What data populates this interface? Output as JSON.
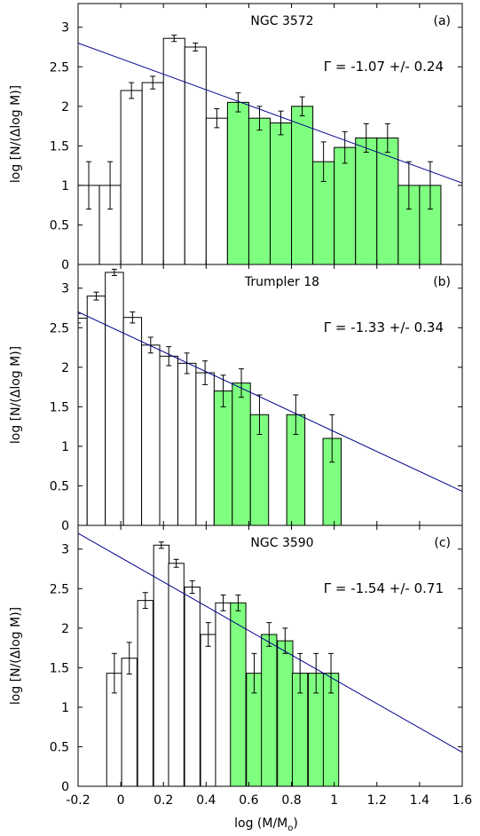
{
  "figure": {
    "xlabel": "log (M/M",
    "xlabel_sub": "o",
    "xlabel_close": ")",
    "ylabel": "log [N/(Δlog M)]"
  },
  "chart_data": [
    {
      "type": "bar",
      "title": "NGC 3572",
      "tag": "(a)",
      "annotation": "Γ = -1.07 +/- 0.24",
      "xlim": [
        -0.2,
        1.6
      ],
      "ylim": [
        0,
        3.3
      ],
      "xticks": [
        "-0.2",
        "0",
        "0.2",
        "0.4",
        "0.6",
        "0.8",
        "1",
        "1.2",
        "1.4",
        "1.6"
      ],
      "yticks": [
        "0",
        "0.5",
        "1",
        "1.5",
        "2",
        "2.5",
        "3"
      ],
      "bin_width": 0.1,
      "fit_line": {
        "x": [
          -0.2,
          1.6
        ],
        "y": [
          2.8,
          1.03
        ]
      },
      "bins": [
        {
          "x": -0.15,
          "y": 1.0,
          "err": 0.3,
          "fit": false
        },
        {
          "x": -0.05,
          "y": 1.0,
          "err": 0.3,
          "fit": false
        },
        {
          "x": 0.05,
          "y": 2.2,
          "err": 0.1,
          "fit": false
        },
        {
          "x": 0.15,
          "y": 2.3,
          "err": 0.08,
          "fit": false
        },
        {
          "x": 0.25,
          "y": 2.86,
          "err": 0.04,
          "fit": false
        },
        {
          "x": 0.35,
          "y": 2.75,
          "err": 0.05,
          "fit": false
        },
        {
          "x": 0.45,
          "y": 1.85,
          "err": 0.12,
          "fit": false
        },
        {
          "x": 0.55,
          "y": 2.05,
          "err": 0.12,
          "fit": true
        },
        {
          "x": 0.65,
          "y": 1.85,
          "err": 0.15,
          "fit": true
        },
        {
          "x": 0.75,
          "y": 1.79,
          "err": 0.15,
          "fit": true
        },
        {
          "x": 0.85,
          "y": 2.0,
          "err": 0.12,
          "fit": true
        },
        {
          "x": 0.95,
          "y": 1.3,
          "err": 0.25,
          "fit": true
        },
        {
          "x": 1.05,
          "y": 1.48,
          "err": 0.2,
          "fit": true
        },
        {
          "x": 1.15,
          "y": 1.6,
          "err": 0.18,
          "fit": true
        },
        {
          "x": 1.25,
          "y": 1.6,
          "err": 0.18,
          "fit": true
        },
        {
          "x": 1.35,
          "y": 1.0,
          "err": 0.3,
          "fit": true
        },
        {
          "x": 1.45,
          "y": 1.0,
          "err": 0.3,
          "fit": true
        }
      ]
    },
    {
      "type": "bar",
      "title": "Trumpler 18",
      "tag": "(b)",
      "annotation": "Γ = -1.33 +/- 0.34",
      "xlim": [
        -0.2,
        1.6
      ],
      "ylim": [
        0,
        3.3
      ],
      "xticks": [
        "-0.2",
        "0",
        "0.2",
        "0.4",
        "0.6",
        "0.8",
        "1",
        "1.2",
        "1.4",
        "1.6"
      ],
      "yticks": [
        "0",
        "0.5",
        "1",
        "1.5",
        "2",
        "2.5",
        "3"
      ],
      "bin_width": 0.085,
      "fit_line": {
        "x": [
          -0.2,
          1.6
        ],
        "y": [
          2.7,
          0.43
        ]
      },
      "bins": [
        {
          "x": -0.2,
          "y": 2.62,
          "err": 0.06,
          "fit": false
        },
        {
          "x": -0.115,
          "y": 2.9,
          "err": 0.05,
          "fit": false
        },
        {
          "x": -0.03,
          "y": 3.2,
          "err": 0.04,
          "fit": false
        },
        {
          "x": 0.055,
          "y": 2.63,
          "err": 0.07,
          "fit": false
        },
        {
          "x": 0.14,
          "y": 2.28,
          "err": 0.1,
          "fit": false
        },
        {
          "x": 0.225,
          "y": 2.14,
          "err": 0.12,
          "fit": false
        },
        {
          "x": 0.31,
          "y": 2.05,
          "err": 0.13,
          "fit": false
        },
        {
          "x": 0.395,
          "y": 1.93,
          "err": 0.15,
          "fit": false
        },
        {
          "x": 0.48,
          "y": 1.7,
          "err": 0.2,
          "fit": true
        },
        {
          "x": 0.565,
          "y": 1.8,
          "err": 0.18,
          "fit": true
        },
        {
          "x": 0.65,
          "y": 1.4,
          "err": 0.25,
          "fit": true
        },
        {
          "x": 0.82,
          "y": 1.4,
          "err": 0.25,
          "fit": true
        },
        {
          "x": 0.99,
          "y": 1.1,
          "err": 0.3,
          "fit": true
        }
      ]
    },
    {
      "type": "bar",
      "title": "NGC 3590",
      "tag": "(c)",
      "annotation": "Γ = -1.54 +/- 0.71",
      "xlim": [
        -0.2,
        1.6
      ],
      "ylim": [
        0,
        3.3
      ],
      "xticks": [
        "-0.2",
        "0",
        "0.2",
        "0.4",
        "0.6",
        "0.8",
        "1",
        "1.2",
        "1.4",
        "1.6"
      ],
      "yticks": [
        "0",
        "0.5",
        "1",
        "1.5",
        "2",
        "2.5",
        "3"
      ],
      "bin_width": 0.072,
      "fit_line": {
        "x": [
          -0.2,
          1.6
        ],
        "y": [
          3.2,
          0.43
        ]
      },
      "bins": [
        {
          "x": -0.03,
          "y": 1.43,
          "err": 0.25,
          "fit": false
        },
        {
          "x": 0.04,
          "y": 1.62,
          "err": 0.2,
          "fit": false
        },
        {
          "x": 0.115,
          "y": 2.35,
          "err": 0.1,
          "fit": false
        },
        {
          "x": 0.19,
          "y": 3.05,
          "err": 0.04,
          "fit": false
        },
        {
          "x": 0.26,
          "y": 2.82,
          "err": 0.05,
          "fit": false
        },
        {
          "x": 0.335,
          "y": 2.52,
          "err": 0.08,
          "fit": false
        },
        {
          "x": 0.41,
          "y": 1.92,
          "err": 0.15,
          "fit": false
        },
        {
          "x": 0.48,
          "y": 2.32,
          "err": 0.1,
          "fit": false
        },
        {
          "x": 0.55,
          "y": 2.32,
          "err": 0.1,
          "fit": true
        },
        {
          "x": 0.625,
          "y": 1.43,
          "err": 0.25,
          "fit": true
        },
        {
          "x": 0.695,
          "y": 1.92,
          "err": 0.15,
          "fit": true
        },
        {
          "x": 0.77,
          "y": 1.84,
          "err": 0.16,
          "fit": true
        },
        {
          "x": 0.84,
          "y": 1.43,
          "err": 0.25,
          "fit": true
        },
        {
          "x": 0.915,
          "y": 1.43,
          "err": 0.25,
          "fit": true
        },
        {
          "x": 0.985,
          "y": 1.43,
          "err": 0.25,
          "fit": true
        }
      ]
    }
  ],
  "colors": {
    "fit_bar": "#7fff7f",
    "plain_bar": "#ffffff",
    "fit_line": "#00008b",
    "axis": "#000000"
  }
}
